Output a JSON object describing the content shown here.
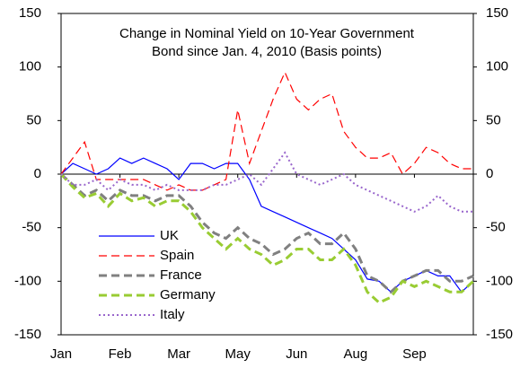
{
  "chart_data": {
    "type": "line",
    "title": [
      "Change in Nominal Yield on 10-Year Government",
      "Bond since Jan. 4, 2010 (Basis points)"
    ],
    "categories": [
      "Jan",
      null,
      null,
      null,
      null,
      "Feb",
      null,
      null,
      null,
      null,
      "Mar",
      null,
      null,
      null,
      null,
      "May",
      null,
      null,
      null,
      null,
      "Jun",
      null,
      null,
      null,
      null,
      "Aug",
      null,
      null,
      null,
      null,
      "Sep",
      null,
      null,
      null,
      null,
      null
    ],
    "series": [
      {
        "name": "UK",
        "color": "#0000ff",
        "dash": "solid",
        "width": 1.2,
        "values": [
          0,
          10,
          5,
          0,
          5,
          15,
          10,
          15,
          10,
          5,
          -5,
          10,
          10,
          5,
          10,
          10,
          -5,
          -30,
          -35,
          -40,
          -45,
          -50,
          -55,
          -60,
          -70,
          -80,
          -98,
          -100,
          -110,
          -100,
          -95,
          -90,
          -95,
          -95,
          -110,
          -100
        ]
      },
      {
        "name": "Spain",
        "color": "#ff0000",
        "dash": "dashed",
        "width": 1.2,
        "values": [
          0,
          15,
          30,
          -5,
          -5,
          -5,
          -5,
          -5,
          -10,
          -15,
          -10,
          -15,
          -15,
          -10,
          -5,
          60,
          10,
          40,
          70,
          95,
          70,
          60,
          70,
          75,
          40,
          25,
          15,
          15,
          20,
          0,
          10,
          25,
          20,
          10,
          5,
          5
        ]
      },
      {
        "name": "France",
        "color": "#808080",
        "dash": "dashed",
        "width": 3,
        "values": [
          0,
          -10,
          -20,
          -15,
          -25,
          -15,
          -20,
          -20,
          -25,
          -20,
          -20,
          -30,
          -45,
          -55,
          -60,
          -50,
          -60,
          -65,
          -75,
          -70,
          -60,
          -55,
          -65,
          -65,
          -55,
          -70,
          -95,
          -100,
          -110,
          -100,
          -95,
          -90,
          -90,
          -100,
          -100,
          -95
        ]
      },
      {
        "name": "Germany",
        "color": "#99cc33",
        "dash": "dashed",
        "width": 3,
        "values": [
          0,
          -12,
          -22,
          -18,
          -30,
          -18,
          -25,
          -22,
          -30,
          -25,
          -25,
          -35,
          -50,
          -60,
          -70,
          -60,
          -70,
          -75,
          -85,
          -80,
          -70,
          -70,
          -80,
          -80,
          -70,
          -85,
          -110,
          -120,
          -115,
          -100,
          -105,
          -100,
          -105,
          -110,
          -110,
          -100
        ]
      },
      {
        "name": "Italy",
        "color": "#9966cc",
        "dash": "dotted",
        "width": 2,
        "values": [
          0,
          -10,
          -10,
          -5,
          -15,
          -5,
          -10,
          -10,
          -15,
          -10,
          -15,
          -15,
          -15,
          -10,
          -10,
          -5,
          0,
          -10,
          5,
          20,
          0,
          -5,
          -10,
          -5,
          0,
          -10,
          -15,
          -20,
          -25,
          -30,
          -35,
          -30,
          -20,
          -30,
          -35,
          -35
        ]
      }
    ],
    "ylim": [
      -150,
      150
    ],
    "yticks": [
      -150,
      -100,
      -50,
      0,
      50,
      100,
      150
    ],
    "y2lim": [
      -150,
      150
    ],
    "y2ticks": [
      -150,
      -100,
      -50,
      0,
      50,
      100,
      150
    ],
    "legend": "lower-left"
  }
}
